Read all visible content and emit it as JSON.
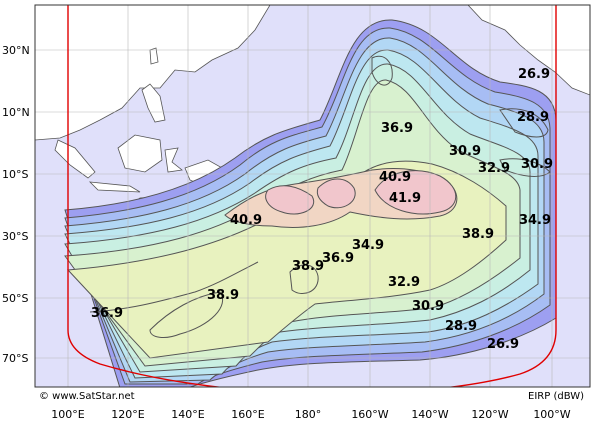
{
  "map": {
    "copyright": "© www.SatStar.net",
    "units_label": "EIRP (dBW)",
    "colors": {
      "ocean": "#e0e0fa",
      "land": "#ffffff",
      "coast": "#555555",
      "grid": "#b8b8b8",
      "boundary": "#e00000",
      "contour_line": "#555555"
    },
    "lat_labels": [
      "30°N",
      "10°N",
      "10°S",
      "30°S",
      "50°S",
      "70°S"
    ],
    "lon_labels": [
      "100°E",
      "120°E",
      "140°E",
      "160°E",
      "180°",
      "160°W",
      "140°W",
      "120°W",
      "100°W"
    ],
    "contour_labels": [
      {
        "value": "26.9"
      },
      {
        "value": "28.9"
      },
      {
        "value": "36.9"
      },
      {
        "value": "30.9"
      },
      {
        "value": "32.9"
      },
      {
        "value": "30.9"
      },
      {
        "value": "40.9"
      },
      {
        "value": "41.9"
      },
      {
        "value": "40.9"
      },
      {
        "value": "34.9"
      },
      {
        "value": "38.9"
      },
      {
        "value": "34.9"
      },
      {
        "value": "36.9"
      },
      {
        "value": "38.9"
      },
      {
        "value": "32.9"
      },
      {
        "value": "38.9"
      },
      {
        "value": "30.9"
      },
      {
        "value": "36.9"
      },
      {
        "value": "28.9"
      },
      {
        "value": "26.9"
      }
    ]
  }
}
